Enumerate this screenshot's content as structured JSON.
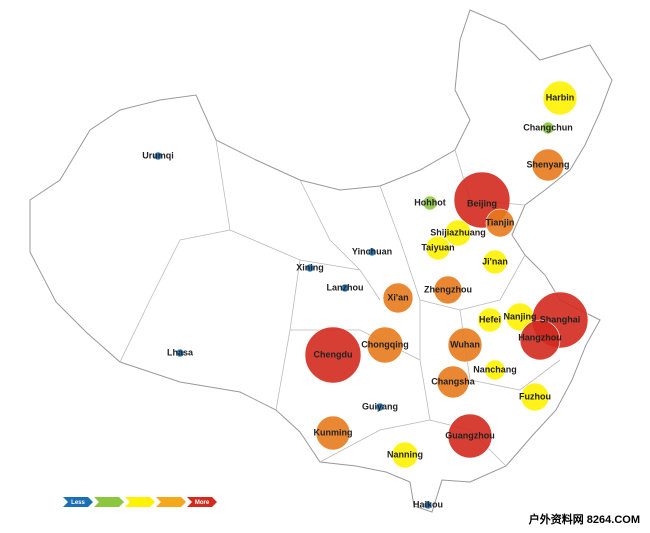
{
  "map": {
    "cities": [
      {
        "name": "Harbin",
        "color": "#fff200"
      },
      {
        "name": "Changchun",
        "color": "#8cc63f"
      },
      {
        "name": "Shenyang",
        "color": "#e87a1c"
      },
      {
        "name": "Beijing",
        "color": "#d42a1e"
      },
      {
        "name": "Tianjin",
        "color": "#e87a1c"
      },
      {
        "name": "Hohhot",
        "color": "#8cc63f"
      },
      {
        "name": "Shijiazhuang",
        "color": "#fff200"
      },
      {
        "name": "Taiyuan",
        "color": "#fff200"
      },
      {
        "name": "Yinchuan",
        "color": "#1a6fb5"
      },
      {
        "name": "Urumqi",
        "color": "#1a6fb5"
      },
      {
        "name": "Xining",
        "color": "#1a6fb5"
      },
      {
        "name": "Lanzhou",
        "color": "#1a6fb5"
      },
      {
        "name": "Ji'nan",
        "color": "#fff200"
      },
      {
        "name": "Zhengzhou",
        "color": "#e87a1c"
      },
      {
        "name": "Xi'an",
        "color": "#e87a1c"
      },
      {
        "name": "Hefei",
        "color": "#fff200"
      },
      {
        "name": "Nanjing",
        "color": "#fff200"
      },
      {
        "name": "Shanghai",
        "color": "#d42a1e"
      },
      {
        "name": "Hangzhou",
        "color": "#d42a1e"
      },
      {
        "name": "Wuhan",
        "color": "#e87a1c"
      },
      {
        "name": "Chongqing",
        "color": "#e87a1c"
      },
      {
        "name": "Chengdu",
        "color": "#d42a1e"
      },
      {
        "name": "Lhasa",
        "color": "#1a6fb5"
      },
      {
        "name": "Nanchang",
        "color": "#fff200"
      },
      {
        "name": "Changsha",
        "color": "#e87a1c"
      },
      {
        "name": "Fuzhou",
        "color": "#fff200"
      },
      {
        "name": "Guiyang",
        "color": "#1a6fb5"
      },
      {
        "name": "Kunming",
        "color": "#e87a1c"
      },
      {
        "name": "Guangzhou",
        "color": "#d42a1e"
      },
      {
        "name": "Nanning",
        "color": "#fff200"
      },
      {
        "name": "Haikou",
        "color": "#1a6fb5"
      }
    ],
    "legend": {
      "colors": [
        "#1a6fb5",
        "#8cc63f",
        "#fff200",
        "#f5a81c",
        "#d42a1e"
      ],
      "low_label": "Less",
      "high_label": "More"
    }
  },
  "watermark": "户外资料网 8264.COM"
}
